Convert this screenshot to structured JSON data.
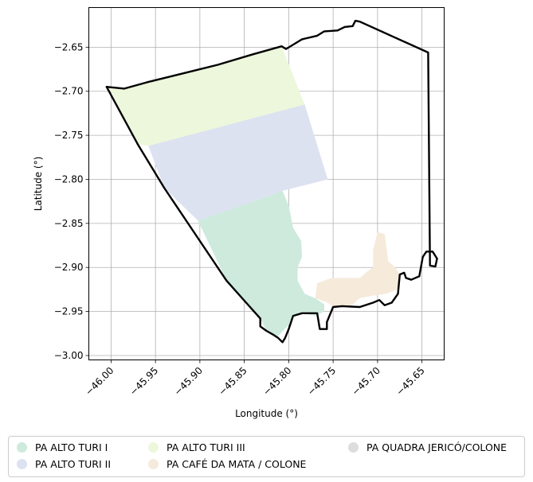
{
  "axes": {
    "xlabel": "Longitude (°)",
    "ylabel": "Latitude (°)",
    "x_ticks": [
      "−46.00",
      "−45.95",
      "−45.90",
      "−45.85",
      "−45.80",
      "−45.75",
      "−45.70",
      "−45.65"
    ],
    "y_ticks": [
      "−2.65",
      "−2.70",
      "−2.75",
      "−2.80",
      "−2.85",
      "−2.90",
      "−2.95",
      "−3.00"
    ]
  },
  "chart_data": {
    "type": "map",
    "xlim": [
      -46.025,
      -45.625
    ],
    "ylim": [
      -3.005,
      -2.605
    ],
    "grid": true,
    "x_tick_values": [
      -46.0,
      -45.95,
      -45.9,
      -45.85,
      -45.8,
      -45.75,
      -45.7,
      -45.65
    ],
    "y_tick_values": [
      -2.65,
      -2.7,
      -2.75,
      -2.8,
      -2.85,
      -2.9,
      -2.95,
      -3.0
    ],
    "boundary": [
      [
        -46.005,
        -2.695
      ],
      [
        -45.985,
        -2.697
      ],
      [
        -45.96,
        -2.69
      ],
      [
        -45.92,
        -2.68
      ],
      [
        -45.88,
        -2.67
      ],
      [
        -45.84,
        -2.658
      ],
      [
        -45.808,
        -2.649
      ],
      [
        -45.803,
        -2.652
      ],
      [
        -45.785,
        -2.641
      ],
      [
        -45.768,
        -2.637
      ],
      [
        -45.76,
        -2.632
      ],
      [
        -45.745,
        -2.631
      ],
      [
        -45.737,
        -2.627
      ],
      [
        -45.728,
        -2.626
      ],
      [
        -45.725,
        -2.62
      ],
      [
        -45.72,
        -2.621
      ],
      [
        -45.643,
        -2.656
      ],
      [
        -45.641,
        -2.898
      ],
      [
        -45.635,
        -2.899
      ],
      [
        -45.633,
        -2.89
      ],
      [
        -45.638,
        -2.882
      ],
      [
        -45.645,
        -2.882
      ],
      [
        -45.649,
        -2.888
      ],
      [
        -45.653,
        -2.91
      ],
      [
        -45.662,
        -2.914
      ],
      [
        -45.668,
        -2.912
      ],
      [
        -45.67,
        -2.906
      ],
      [
        -45.675,
        -2.908
      ],
      [
        -45.677,
        -2.93
      ],
      [
        -45.684,
        -2.94
      ],
      [
        -45.692,
        -2.943
      ],
      [
        -45.698,
        -2.937
      ],
      [
        -45.705,
        -2.94
      ],
      [
        -45.72,
        -2.945
      ],
      [
        -45.74,
        -2.944
      ],
      [
        -45.75,
        -2.945
      ],
      [
        -45.757,
        -2.962
      ],
      [
        -45.757,
        -2.97
      ],
      [
        -45.765,
        -2.97
      ],
      [
        -45.768,
        -2.952
      ],
      [
        -45.785,
        -2.952
      ],
      [
        -45.795,
        -2.955
      ],
      [
        -45.8,
        -2.97
      ],
      [
        -45.804,
        -2.98
      ],
      [
        -45.807,
        -2.985
      ],
      [
        -45.812,
        -2.98
      ],
      [
        -45.818,
        -2.976
      ],
      [
        -45.825,
        -2.972
      ],
      [
        -45.832,
        -2.967
      ],
      [
        -45.832,
        -2.958
      ],
      [
        -45.848,
        -2.94
      ],
      [
        -45.87,
        -2.915
      ],
      [
        -45.9,
        -2.87
      ],
      [
        -45.94,
        -2.81
      ],
      [
        -45.97,
        -2.76
      ],
      [
        -46.005,
        -2.695
      ]
    ],
    "areas": [
      {
        "name": "PA ALTO TURI I",
        "color": "#cdeadd",
        "polygon": [
          [
            -45.902,
            -2.847
          ],
          [
            -45.807,
            -2.813
          ],
          [
            -45.8,
            -2.83
          ],
          [
            -45.795,
            -2.855
          ],
          [
            -45.786,
            -2.87
          ],
          [
            -45.785,
            -2.888
          ],
          [
            -45.79,
            -2.9
          ],
          [
            -45.79,
            -2.915
          ],
          [
            -45.782,
            -2.93
          ],
          [
            -45.77,
            -2.935
          ],
          [
            -45.76,
            -2.942
          ],
          [
            -45.76,
            -2.95
          ],
          [
            -45.77,
            -2.955
          ],
          [
            -45.785,
            -2.952
          ],
          [
            -45.795,
            -2.955
          ],
          [
            -45.8,
            -2.965
          ],
          [
            -45.812,
            -2.978
          ],
          [
            -45.825,
            -2.972
          ],
          [
            -45.832,
            -2.958
          ],
          [
            -45.848,
            -2.94
          ],
          [
            -45.87,
            -2.915
          ],
          [
            -45.902,
            -2.847
          ]
        ]
      },
      {
        "name": "PA ALTO TURI II",
        "color": "#dde2f1",
        "polygon": [
          [
            -45.958,
            -2.762
          ],
          [
            -45.782,
            -2.715
          ],
          [
            -45.756,
            -2.8
          ],
          [
            -45.807,
            -2.813
          ],
          [
            -45.902,
            -2.847
          ],
          [
            -45.94,
            -2.81
          ],
          [
            -45.958,
            -2.762
          ]
        ]
      },
      {
        "name": "PA ALTO TURI III",
        "color": "#edf7db",
        "polygon": [
          [
            -46.003,
            -2.695
          ],
          [
            -45.985,
            -2.697
          ],
          [
            -45.96,
            -2.69
          ],
          [
            -45.92,
            -2.68
          ],
          [
            -45.88,
            -2.67
          ],
          [
            -45.84,
            -2.658
          ],
          [
            -45.808,
            -2.649
          ],
          [
            -45.782,
            -2.715
          ],
          [
            -45.958,
            -2.762
          ],
          [
            -45.97,
            -2.76
          ],
          [
            -46.003,
            -2.695
          ]
        ]
      },
      {
        "name": "PA CAFÉ DA MATA / COLONE",
        "color": "#f6eadb",
        "polygon": [
          [
            -45.7,
            -2.86
          ],
          [
            -45.692,
            -2.862
          ],
          [
            -45.688,
            -2.893
          ],
          [
            -45.68,
            -2.9
          ],
          [
            -45.674,
            -2.91
          ],
          [
            -45.678,
            -2.925
          ],
          [
            -45.69,
            -2.93
          ],
          [
            -45.705,
            -2.932
          ],
          [
            -45.72,
            -2.935
          ],
          [
            -45.73,
            -2.944
          ],
          [
            -45.745,
            -2.944
          ],
          [
            -45.75,
            -2.945
          ],
          [
            -45.756,
            -2.94
          ],
          [
            -45.77,
            -2.935
          ],
          [
            -45.768,
            -2.918
          ],
          [
            -45.752,
            -2.912
          ],
          [
            -45.735,
            -2.912
          ],
          [
            -45.72,
            -2.912
          ],
          [
            -45.712,
            -2.905
          ],
          [
            -45.705,
            -2.9
          ],
          [
            -45.705,
            -2.88
          ],
          [
            -45.7,
            -2.86
          ]
        ]
      },
      {
        "name": "PA QUADRA JERICÓ/COLONE",
        "color": "#dddddd"
      }
    ]
  },
  "legend": {
    "items": [
      {
        "label": "PA ALTO TURI I",
        "color": "#cdeadd"
      },
      {
        "label": "PA ALTO TURI III",
        "color": "#edf7db"
      },
      {
        "label": "PA QUADRA JERICÓ/COLONE",
        "color": "#dddddd"
      },
      {
        "label": "PA ALTO TURI II",
        "color": "#dde2f1"
      },
      {
        "label": "PA CAFÉ DA MATA / COLONE",
        "color": "#f6eadb"
      }
    ]
  }
}
